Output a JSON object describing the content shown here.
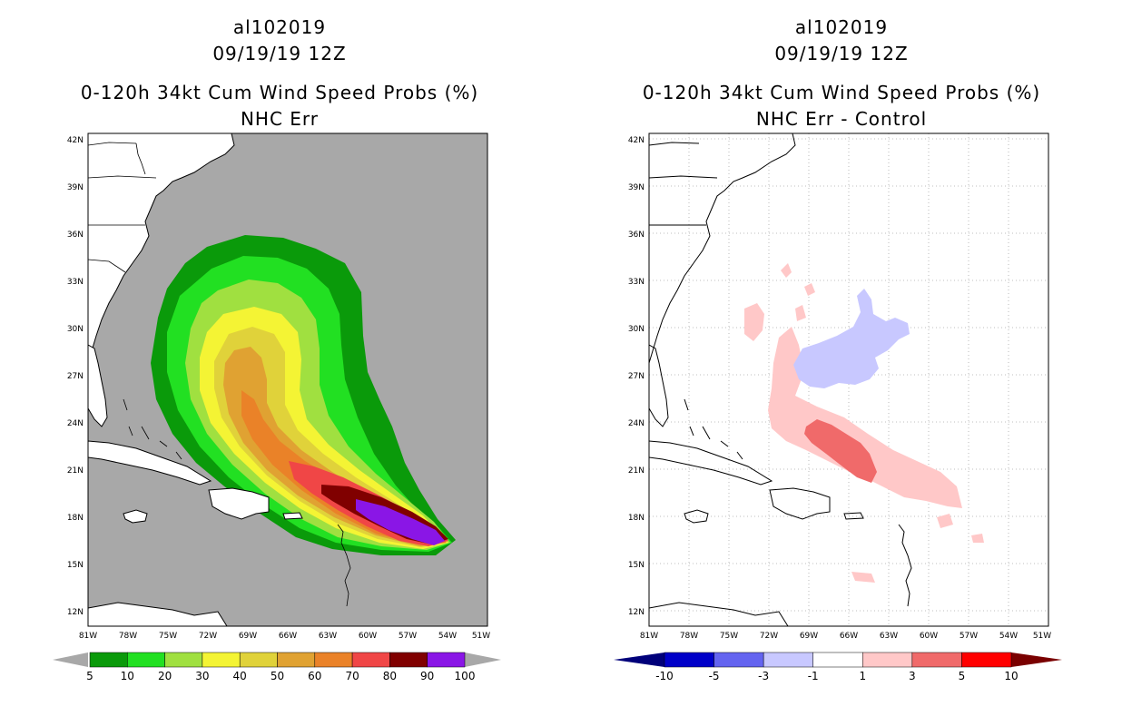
{
  "chart_data": [
    {
      "type": "heatmap",
      "panel": "left",
      "title_lines": [
        "al102019",
        "09/19/19 12Z",
        "0-120h 34kt Cum Wind Speed Probs (%)",
        "NHC Err"
      ],
      "x_ticks": [
        "81W",
        "78W",
        "75W",
        "72W",
        "69W",
        "66W",
        "63W",
        "60W",
        "57W",
        "54W",
        "51W"
      ],
      "y_ticks": [
        "12N",
        "15N",
        "18N",
        "21N",
        "24N",
        "27N",
        "30N",
        "33N",
        "36N",
        "39N",
        "42N"
      ],
      "lon_range": [
        -81,
        -50
      ],
      "lat_range": [
        11,
        42.5
      ],
      "grid": false,
      "background_color": "#a8a8a8",
      "colorbar": {
        "labels": [
          "5",
          "10",
          "20",
          "30",
          "40",
          "50",
          "60",
          "70",
          "80",
          "90",
          "100"
        ],
        "colors": [
          "#0a9a0a",
          "#22e022",
          "#a0e040",
          "#f4f434",
          "#e0d23a",
          "#e0a232",
          "#ea8228",
          "#f04646",
          "#800000",
          "#8a16e6"
        ],
        "end_triangles": true
      },
      "contours": [
        {
          "level": 5,
          "color": "#0a9a0a"
        },
        {
          "level": 10,
          "color": "#22e022"
        },
        {
          "level": 20,
          "color": "#a0e040"
        },
        {
          "level": 30,
          "color": "#f4f434"
        },
        {
          "level": 40,
          "color": "#e0d23a"
        },
        {
          "level": 50,
          "color": "#e0a232"
        },
        {
          "level": 60,
          "color": "#ea8228"
        },
        {
          "level": 70,
          "color": "#f04646"
        },
        {
          "level": 80,
          "color": "#800000"
        },
        {
          "level": 90,
          "color": "#8a16e6"
        }
      ]
    },
    {
      "type": "heatmap",
      "panel": "right",
      "title_lines": [
        "al102019",
        "09/19/19 12Z",
        "0-120h 34kt Cum Wind Speed Probs (%)",
        "NHC Err - Control"
      ],
      "x_ticks": [
        "81W",
        "78W",
        "75W",
        "72W",
        "69W",
        "66W",
        "63W",
        "60W",
        "57W",
        "54W",
        "51W"
      ],
      "y_ticks": [
        "12N",
        "15N",
        "18N",
        "21N",
        "24N",
        "27N",
        "30N",
        "33N",
        "36N",
        "39N",
        "42N"
      ],
      "lon_range": [
        -81,
        -50
      ],
      "lat_range": [
        11,
        42.5
      ],
      "grid": true,
      "background_color": "#ffffff",
      "colorbar": {
        "labels": [
          "-10",
          "-5",
          "-3",
          "-1",
          "1",
          "3",
          "5",
          "10"
        ],
        "colors": [
          "#0000c8",
          "#6464f0",
          "#c8c8ff",
          "#ffffff",
          "#ffc8c8",
          "#f06a6a",
          "#ff0000"
        ],
        "end_colors": [
          "#00007a",
          "#7a0000"
        ],
        "end_triangles": true
      },
      "regions": [
        {
          "label": "negative -1 to -3",
          "color": "#c8c8ff"
        },
        {
          "label": "positive 1 to 3",
          "color": "#ffc8c8"
        },
        {
          "label": "positive 3 to 5",
          "color": "#f06a6a"
        }
      ]
    }
  ]
}
